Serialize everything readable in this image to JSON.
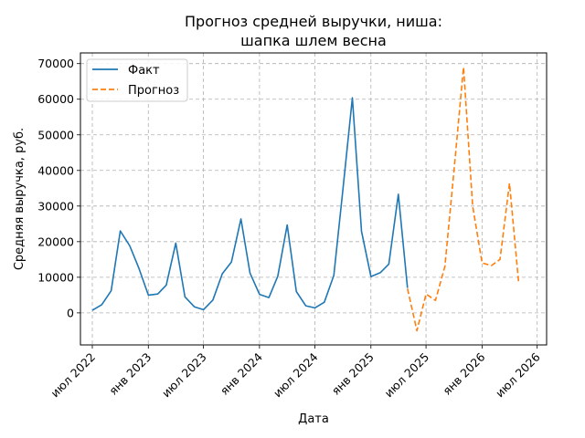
{
  "chart_data": {
    "type": "line",
    "title": [
      "Прогноз средней выручки, ниша:",
      "шапка шлем весна"
    ],
    "xlabel": "Дата",
    "ylabel": "Средняя выручка, руб.",
    "ylim": [
      -9000,
      73000
    ],
    "xlim": [
      "2022-05-23",
      "2026-08-01"
    ],
    "grid": true,
    "legend_placement": "top-left",
    "y_ticks": [
      0,
      10000,
      20000,
      30000,
      40000,
      50000,
      60000,
      70000
    ],
    "x_ticks": [
      {
        "date": "2022-07-01",
        "label": "июл 2022"
      },
      {
        "date": "2023-01-01",
        "label": "янв 2023"
      },
      {
        "date": "2023-07-01",
        "label": "июл 2023"
      },
      {
        "date": "2024-01-01",
        "label": "янв 2024"
      },
      {
        "date": "2024-07-01",
        "label": "июл 2024"
      },
      {
        "date": "2025-01-01",
        "label": "янв 2025"
      },
      {
        "date": "2025-07-01",
        "label": "июл 2025"
      },
      {
        "date": "2026-01-01",
        "label": "янв 2026"
      },
      {
        "date": "2026-07-01",
        "label": "июл 2026"
      }
    ],
    "series": [
      {
        "name": "Факт",
        "color": "#1f77b4",
        "style": "solid",
        "points": [
          [
            "2022-07-01",
            700
          ],
          [
            "2022-08-01",
            2300
          ],
          [
            "2022-09-01",
            6200
          ],
          [
            "2022-10-01",
            23000
          ],
          [
            "2022-11-01",
            18800
          ],
          [
            "2022-12-01",
            12500
          ],
          [
            "2023-01-01",
            5000
          ],
          [
            "2023-02-01",
            5300
          ],
          [
            "2023-03-01",
            7800
          ],
          [
            "2023-04-01",
            19600
          ],
          [
            "2023-05-01",
            4500
          ],
          [
            "2023-06-01",
            1700
          ],
          [
            "2023-07-01",
            900
          ],
          [
            "2023-08-01",
            3600
          ],
          [
            "2023-09-01",
            11000
          ],
          [
            "2023-10-01",
            14300
          ],
          [
            "2023-11-01",
            26400
          ],
          [
            "2023-12-01",
            11200
          ],
          [
            "2024-01-01",
            5200
          ],
          [
            "2024-02-01",
            4300
          ],
          [
            "2024-03-01",
            10300
          ],
          [
            "2024-04-01",
            24700
          ],
          [
            "2024-05-01",
            6000
          ],
          [
            "2024-06-01",
            2000
          ],
          [
            "2024-07-01",
            1400
          ],
          [
            "2024-08-01",
            3000
          ],
          [
            "2024-09-01",
            10500
          ],
          [
            "2024-10-01",
            34500
          ],
          [
            "2024-11-01",
            60400
          ],
          [
            "2024-12-01",
            22900
          ],
          [
            "2025-01-01",
            10200
          ],
          [
            "2025-02-01",
            11300
          ],
          [
            "2025-03-01",
            13700
          ],
          [
            "2025-04-01",
            33300
          ],
          [
            "2025-05-01",
            7000
          ]
        ]
      },
      {
        "name": "Прогноз",
        "color": "#ff7f0e",
        "style": "dashed",
        "points": [
          [
            "2025-05-01",
            6800
          ],
          [
            "2025-06-01",
            -5000
          ],
          [
            "2025-07-01",
            5300
          ],
          [
            "2025-08-01",
            3500
          ],
          [
            "2025-09-01",
            13000
          ],
          [
            "2025-10-01",
            40000
          ],
          [
            "2025-11-01",
            69000
          ],
          [
            "2025-12-01",
            30000
          ],
          [
            "2026-01-01",
            14000
          ],
          [
            "2026-02-01",
            13300
          ],
          [
            "2026-03-01",
            15000
          ],
          [
            "2026-04-01",
            36400
          ],
          [
            "2026-05-01",
            8500
          ]
        ]
      }
    ]
  }
}
